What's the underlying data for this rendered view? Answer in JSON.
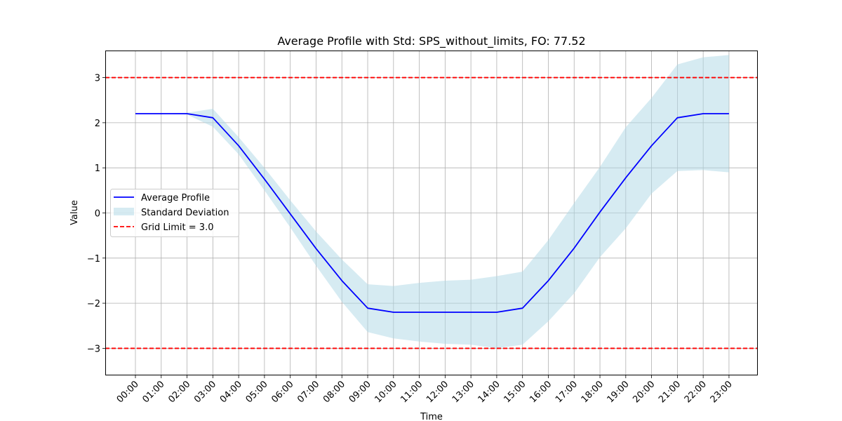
{
  "chart_data": {
    "type": "line",
    "title": "Average Profile with Std: SPS_without_limits, FO: 77.52",
    "xlabel": "Time",
    "ylabel": "Value",
    "ylim": [
      -3.6,
      3.6
    ],
    "y_ticks": [
      {
        "value": 3,
        "label": "3"
      },
      {
        "value": 2,
        "label": "2"
      },
      {
        "value": 1,
        "label": "1"
      },
      {
        "value": 0,
        "label": "0"
      },
      {
        "value": -1,
        "label": "−1"
      },
      {
        "value": -2,
        "label": "−2"
      },
      {
        "value": -3,
        "label": "−3"
      }
    ],
    "categories": [
      "00:00",
      "01:00",
      "02:00",
      "03:00",
      "04:00",
      "05:00",
      "06:00",
      "07:00",
      "08:00",
      "09:00",
      "10:00",
      "11:00",
      "12:00",
      "13:00",
      "14:00",
      "15:00",
      "16:00",
      "17:00",
      "18:00",
      "19:00",
      "20:00",
      "21:00",
      "22:00",
      "23:00"
    ],
    "grid": true,
    "legend_position": "center-left",
    "series": [
      {
        "name": "Average Profile",
        "color": "#0000ff",
        "values": [
          2.2,
          2.2,
          2.2,
          2.11,
          1.49,
          0.75,
          -0.02,
          -0.79,
          -1.5,
          -2.11,
          -2.2,
          -2.2,
          -2.2,
          -2.2,
          -2.2,
          -2.11,
          -1.5,
          -0.78,
          0.02,
          0.78,
          1.49,
          2.11,
          2.2,
          2.2
        ]
      },
      {
        "name": "Standard Deviation",
        "color": "#add8e6",
        "upper": [
          2.2,
          2.2,
          2.22,
          2.31,
          1.68,
          1.0,
          0.28,
          -0.41,
          -1.03,
          -1.58,
          -1.62,
          -1.55,
          -1.5,
          -1.48,
          -1.4,
          -1.3,
          -0.6,
          0.22,
          1.02,
          1.9,
          2.55,
          3.29,
          3.45,
          3.5
        ],
        "lower": [
          2.2,
          2.2,
          2.18,
          1.91,
          1.3,
          0.5,
          -0.32,
          -1.17,
          -1.97,
          -2.64,
          -2.78,
          -2.85,
          -2.9,
          -2.92,
          -3.0,
          -2.92,
          -2.4,
          -1.78,
          -0.98,
          -0.34,
          0.43,
          0.93,
          0.95,
          0.9
        ]
      },
      {
        "name": "Grid Limit = 3.0",
        "color": "#ff0000",
        "lines": [
          3.0,
          -3.0
        ]
      }
    ]
  }
}
